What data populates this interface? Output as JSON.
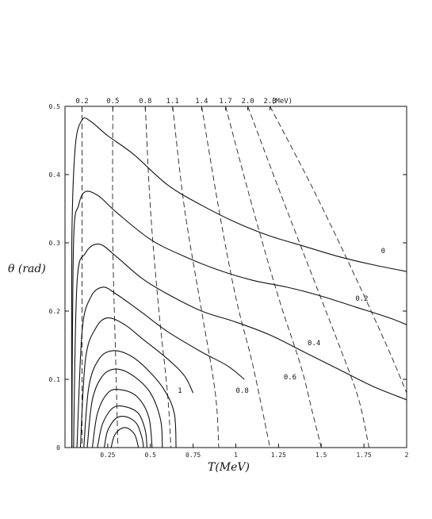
{
  "chart_data": {
    "type": "line",
    "xlabel": "T(MeV)",
    "ylabel": "θ (rad)",
    "xlim": [
      0,
      2
    ],
    "ylim": [
      0,
      0.5
    ],
    "x_ticks": [
      {
        "v": 0.25,
        "label": "0.25"
      },
      {
        "v": 0.5,
        "label": "0.5"
      },
      {
        "v": 0.75,
        "label": "0.75"
      },
      {
        "v": 1.0,
        "label": "1"
      },
      {
        "v": 1.25,
        "label": "1.25"
      },
      {
        "v": 1.5,
        "label": "1.5"
      },
      {
        "v": 1.75,
        "label": "1.75"
      },
      {
        "v": 2.0,
        "label": "2"
      }
    ],
    "y_ticks": [
      {
        "v": 0,
        "label": "0"
      },
      {
        "v": 0.1,
        "label": "0.1"
      },
      {
        "v": 0.2,
        "label": "0.2"
      },
      {
        "v": 0.3,
        "label": "0.3"
      },
      {
        "v": 0.4,
        "label": "0.4"
      },
      {
        "v": 0.5,
        "label": "0.5"
      }
    ],
    "top_ticks": [
      {
        "v": 0.1,
        "label": "0.2"
      },
      {
        "v": 0.28,
        "label": "0.5"
      },
      {
        "v": 0.47,
        "label": "0.8"
      },
      {
        "v": 0.63,
        "label": "1.1"
      },
      {
        "v": 0.8,
        "label": "1.4"
      },
      {
        "v": 0.94,
        "label": "1.7"
      },
      {
        "v": 1.07,
        "label": "2.0"
      },
      {
        "v": 1.2,
        "label": "2.3"
      }
    ],
    "top_unit": "(MeV)",
    "solid_series": [
      {
        "label": "0",
        "points": [
          [
            0.04,
            0
          ],
          [
            0.04,
            0.3
          ],
          [
            0.06,
            0.44
          ],
          [
            0.1,
            0.48
          ],
          [
            0.15,
            0.478
          ],
          [
            0.25,
            0.457
          ],
          [
            0.4,
            0.43
          ],
          [
            0.6,
            0.385
          ],
          [
            0.8,
            0.355
          ],
          [
            1.0,
            0.33
          ],
          [
            1.2,
            0.31
          ],
          [
            1.4,
            0.295
          ],
          [
            1.6,
            0.28
          ],
          [
            1.8,
            0.268
          ],
          [
            2.0,
            0.258
          ]
        ]
      },
      {
        "label": "0.2",
        "points": [
          [
            0.04,
            0
          ],
          [
            0.05,
            0.3
          ],
          [
            0.08,
            0.355
          ],
          [
            0.12,
            0.375
          ],
          [
            0.2,
            0.368
          ],
          [
            0.3,
            0.345
          ],
          [
            0.5,
            0.305
          ],
          [
            0.7,
            0.28
          ],
          [
            0.9,
            0.26
          ],
          [
            1.1,
            0.245
          ],
          [
            1.3,
            0.235
          ],
          [
            1.5,
            0.222
          ],
          [
            1.7,
            0.206
          ],
          [
            1.9,
            0.19
          ],
          [
            2.0,
            0.18
          ]
        ]
      },
      {
        "label": "0.4",
        "points": [
          [
            0.05,
            0
          ],
          [
            0.07,
            0.24
          ],
          [
            0.12,
            0.285
          ],
          [
            0.2,
            0.298
          ],
          [
            0.3,
            0.28
          ],
          [
            0.45,
            0.248
          ],
          [
            0.6,
            0.225
          ],
          [
            0.8,
            0.2
          ],
          [
            1.0,
            0.184
          ],
          [
            1.2,
            0.165
          ],
          [
            1.4,
            0.14
          ],
          [
            1.6,
            0.115
          ],
          [
            1.8,
            0.09
          ],
          [
            2.0,
            0.07
          ]
        ]
      },
      {
        "label": "0.6",
        "points": [
          [
            0.07,
            0
          ],
          [
            0.1,
            0.17
          ],
          [
            0.15,
            0.22
          ],
          [
            0.22,
            0.235
          ],
          [
            0.3,
            0.225
          ],
          [
            0.45,
            0.198
          ],
          [
            0.6,
            0.17
          ],
          [
            0.8,
            0.14
          ],
          [
            0.95,
            0.12
          ],
          [
            1.05,
            0.1
          ]
        ]
      },
      {
        "label": "0.8",
        "points": [
          [
            0.09,
            0
          ],
          [
            0.12,
            0.13
          ],
          [
            0.18,
            0.175
          ],
          [
            0.25,
            0.19
          ],
          [
            0.35,
            0.18
          ],
          [
            0.45,
            0.16
          ],
          [
            0.6,
            0.13
          ],
          [
            0.7,
            0.105
          ],
          [
            0.75,
            0.08
          ]
        ]
      },
      {
        "label": "1",
        "points": [
          [
            0.11,
            0
          ],
          [
            0.14,
            0.09
          ],
          [
            0.2,
            0.13
          ],
          [
            0.28,
            0.142
          ],
          [
            0.38,
            0.135
          ],
          [
            0.48,
            0.115
          ],
          [
            0.58,
            0.085
          ],
          [
            0.64,
            0.05
          ],
          [
            0.65,
            0
          ]
        ]
      },
      {
        "label": "",
        "points": [
          [
            0.13,
            0
          ],
          [
            0.16,
            0.07
          ],
          [
            0.22,
            0.105
          ],
          [
            0.3,
            0.115
          ],
          [
            0.4,
            0.105
          ],
          [
            0.5,
            0.08
          ],
          [
            0.56,
            0.04
          ],
          [
            0.57,
            0
          ]
        ]
      },
      {
        "label": "",
        "points": [
          [
            0.16,
            0
          ],
          [
            0.19,
            0.05
          ],
          [
            0.25,
            0.08
          ],
          [
            0.32,
            0.085
          ],
          [
            0.42,
            0.075
          ],
          [
            0.49,
            0.045
          ],
          [
            0.51,
            0
          ]
        ]
      },
      {
        "label": "",
        "points": [
          [
            0.19,
            0
          ],
          [
            0.22,
            0.035
          ],
          [
            0.28,
            0.058
          ],
          [
            0.35,
            0.06
          ],
          [
            0.43,
            0.05
          ],
          [
            0.47,
            0.025
          ],
          [
            0.48,
            0
          ]
        ]
      },
      {
        "label": "",
        "points": [
          [
            0.23,
            0
          ],
          [
            0.25,
            0.025
          ],
          [
            0.3,
            0.043
          ],
          [
            0.36,
            0.045
          ],
          [
            0.42,
            0.035
          ],
          [
            0.45,
            0.015
          ],
          [
            0.46,
            0
          ]
        ]
      },
      {
        "label": "",
        "points": [
          [
            0.27,
            0
          ],
          [
            0.29,
            0.018
          ],
          [
            0.33,
            0.028
          ],
          [
            0.37,
            0.028
          ],
          [
            0.41,
            0.018
          ],
          [
            0.43,
            0
          ]
        ]
      }
    ],
    "dashed_series": [
      [
        [
          0.1,
          0.5
        ],
        [
          0.1,
          0
        ]
      ],
      [
        [
          0.28,
          0.5
        ],
        [
          0.28,
          0.3
        ],
        [
          0.3,
          0.1
        ],
        [
          0.31,
          0
        ]
      ],
      [
        [
          0.47,
          0.5
        ],
        [
          0.5,
          0.35
        ],
        [
          0.55,
          0.2
        ],
        [
          0.6,
          0.08
        ],
        [
          0.62,
          0
        ]
      ],
      [
        [
          0.63,
          0.5
        ],
        [
          0.7,
          0.35
        ],
        [
          0.8,
          0.2
        ],
        [
          0.88,
          0.08
        ],
        [
          0.9,
          0
        ]
      ],
      [
        [
          0.8,
          0.5
        ],
        [
          0.9,
          0.35
        ],
        [
          1.0,
          0.22
        ],
        [
          1.1,
          0.12
        ],
        [
          1.2,
          0
        ]
      ],
      [
        [
          0.94,
          0.5
        ],
        [
          1.1,
          0.35
        ],
        [
          1.25,
          0.22
        ],
        [
          1.38,
          0.12
        ],
        [
          1.45,
          0.05
        ],
        [
          1.5,
          0
        ]
      ],
      [
        [
          1.07,
          0.5
        ],
        [
          1.25,
          0.38
        ],
        [
          1.45,
          0.25
        ],
        [
          1.62,
          0.14
        ],
        [
          1.72,
          0.07
        ],
        [
          1.78,
          0
        ]
      ],
      [
        [
          1.2,
          0.5
        ],
        [
          1.45,
          0.38
        ],
        [
          1.7,
          0.25
        ],
        [
          1.9,
          0.14
        ],
        [
          2.0,
          0.08
        ]
      ]
    ]
  }
}
